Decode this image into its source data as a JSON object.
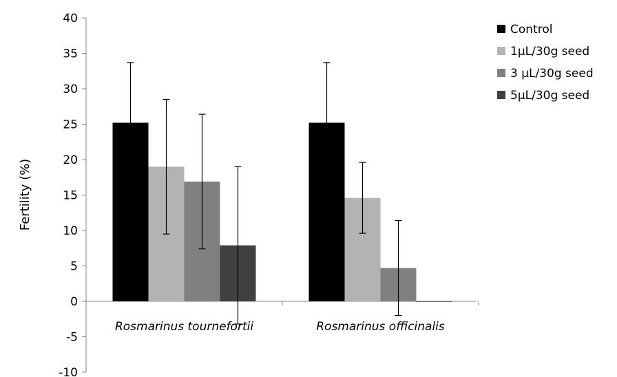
{
  "chart_data": {
    "type": "bar",
    "ylabel": "Fertility (%)",
    "ylim": [
      -10,
      40
    ],
    "yticks": [
      -10,
      -5,
      0,
      5,
      10,
      15,
      20,
      25,
      30,
      35,
      40
    ],
    "categories": [
      "Rosmarinus tournefortii",
      "Rosmarinus officinalis"
    ],
    "series": [
      {
        "name": "Control",
        "color": "#000000",
        "values": [
          25.2,
          25.2
        ],
        "errors": [
          8.5,
          8.5
        ]
      },
      {
        "name": "1µL/30g seed",
        "color": "#b3b3b3",
        "values": [
          19.0,
          14.6
        ],
        "errors": [
          9.5,
          5.0
        ]
      },
      {
        "name": "3 µL/30g seed",
        "color": "#808080",
        "values": [
          16.9,
          4.7
        ],
        "errors": [
          9.5,
          6.7
        ]
      },
      {
        "name": "5µL/30g seed",
        "color": "#404040",
        "values": [
          7.9,
          0
        ],
        "errors": [
          11.1,
          0
        ]
      }
    ],
    "legend_position": "right",
    "grid": false
  }
}
